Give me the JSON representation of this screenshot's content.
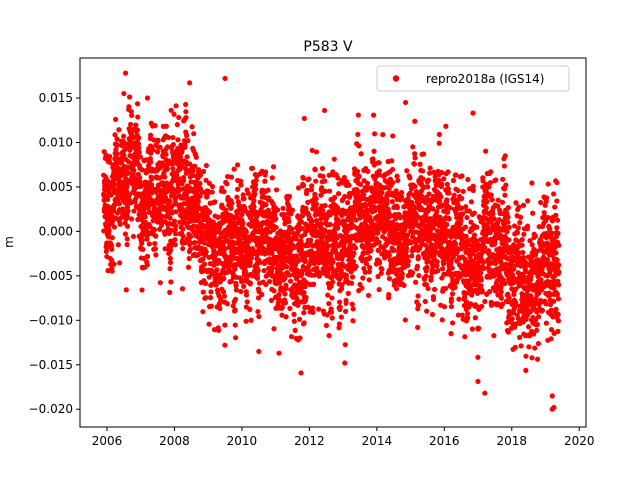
{
  "chart_data": {
    "type": "scatter",
    "title": "P583 V",
    "xlabel": "",
    "ylabel": "m",
    "xlim": [
      2005.2,
      2020.2
    ],
    "ylim": [
      -0.022,
      0.0195
    ],
    "x_ticks": [
      2006,
      2008,
      2010,
      2012,
      2014,
      2016,
      2018,
      2020
    ],
    "x_tick_labels": [
      "2006",
      "2008",
      "2010",
      "2012",
      "2014",
      "2016",
      "2018",
      "2020"
    ],
    "y_ticks": [
      -0.02,
      -0.015,
      -0.01,
      -0.005,
      0.0,
      0.005,
      0.01,
      0.015
    ],
    "y_tick_labels": [
      "−0.020",
      "−0.015",
      "−0.010",
      "−0.005",
      "0.000",
      "0.005",
      "0.010",
      "0.015"
    ],
    "grid": false,
    "legend": {
      "placement": "top-right",
      "entries": [
        "repro2018a (IGS14)"
      ]
    },
    "series": [
      {
        "name": "repro2018a (IGS14)",
        "color": "#ff0000",
        "marker": "circle",
        "x_range": [
          2005.9,
          2019.4
        ],
        "points_per_year": 330,
        "trend_anchors": [
          [
            2005.9,
            0.003
          ],
          [
            2006.5,
            0.004
          ],
          [
            2007.5,
            0.004
          ],
          [
            2008.5,
            0.002
          ],
          [
            2009.5,
            0.0
          ],
          [
            2010.5,
            -0.001
          ],
          [
            2011.0,
            -0.004
          ],
          [
            2012.0,
            -0.001
          ],
          [
            2013.0,
            -0.002
          ],
          [
            2014.0,
            0.001
          ],
          [
            2015.0,
            0.001
          ],
          [
            2016.0,
            -0.001
          ],
          [
            2017.0,
            -0.002
          ],
          [
            2018.0,
            -0.003
          ],
          [
            2019.0,
            -0.004
          ],
          [
            2019.4,
            -0.006
          ]
        ],
        "scatter_sd": 0.0038,
        "notable_points": [
          [
            2006.55,
            0.0178
          ],
          [
            2006.5,
            0.0155
          ],
          [
            2007.2,
            0.015
          ],
          [
            2008.45,
            0.0167
          ],
          [
            2009.5,
            0.0172
          ],
          [
            2011.85,
            0.0127
          ],
          [
            2012.45,
            0.0136
          ],
          [
            2014.85,
            0.0145
          ],
          [
            2016.85,
            0.0133
          ],
          [
            2013.05,
            -0.0148
          ],
          [
            2017.2,
            -0.0182
          ],
          [
            2019.2,
            -0.0185
          ],
          [
            2019.2,
            -0.02
          ],
          [
            2019.25,
            -0.0198
          ],
          [
            2010.5,
            -0.0135
          ],
          [
            2011.1,
            -0.0137
          ]
        ]
      }
    ]
  }
}
